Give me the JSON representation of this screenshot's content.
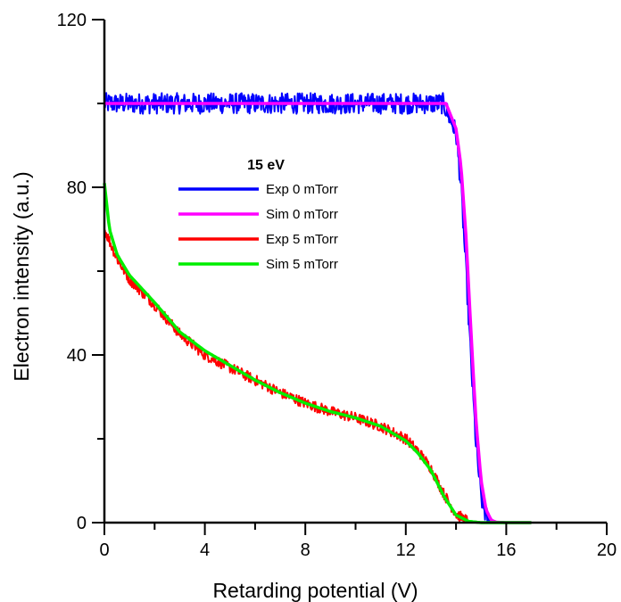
{
  "chart_data": {
    "type": "line",
    "title": "",
    "xlabel": "Retarding potential (V)",
    "ylabel": "Electron intensity (a.u.)",
    "xlim": [
      0,
      20
    ],
    "ylim": [
      0,
      120
    ],
    "x_ticks": [
      "0",
      "4",
      "8",
      "12",
      "16",
      "20"
    ],
    "y_ticks": [
      "0",
      "40",
      "80",
      "120"
    ],
    "legend": {
      "title": "15 eV",
      "placement": "center"
    },
    "series": [
      {
        "name": "Exp 0 mTorr",
        "color": "#0000ff",
        "noise": 2.5,
        "x": [
          0,
          2,
          4,
          6,
          8,
          10,
          12,
          13.5,
          14.0,
          14.2,
          14.4,
          14.6,
          14.8,
          15.0,
          15.2,
          15.4,
          16,
          17
        ],
        "y": [
          100,
          100,
          100,
          100,
          100,
          100,
          100,
          100,
          93,
          80,
          60,
          38,
          18,
          6,
          1.5,
          0.3,
          0,
          0
        ]
      },
      {
        "name": "Sim 0 mTorr",
        "color": "#ff00ff",
        "noise": 0,
        "x": [
          0,
          2,
          4,
          6,
          8,
          10,
          12,
          13.6,
          14.0,
          14.2,
          14.4,
          14.6,
          14.8,
          15.0,
          15.2,
          15.4,
          15.6,
          16,
          17
        ],
        "y": [
          100,
          100,
          100,
          100,
          100,
          100,
          100,
          100,
          94,
          85,
          68,
          45,
          24,
          10,
          3,
          0.6,
          0.1,
          0,
          0
        ]
      },
      {
        "name": "Exp 5 mTorr",
        "color": "#ff0000",
        "noise": 1.3,
        "x": [
          0,
          0.5,
          1,
          2,
          3,
          4,
          5,
          6,
          7,
          8,
          9,
          10,
          11,
          12,
          12.5,
          13,
          13.5,
          14,
          14.5,
          15,
          16,
          17
        ],
        "y": [
          70,
          63,
          58,
          52,
          45,
          40,
          37,
          34,
          31,
          28.5,
          26.5,
          25,
          23,
          20,
          17,
          13,
          7,
          2,
          0.3,
          0,
          0,
          0
        ]
      },
      {
        "name": "Sim 5 mTorr",
        "color": "#00ee00",
        "noise": 0,
        "x": [
          0,
          0.2,
          0.5,
          1,
          2,
          3,
          4,
          5,
          6,
          7,
          8,
          9,
          10,
          11,
          12,
          12.5,
          13,
          13.5,
          14,
          14.5,
          15,
          16,
          17
        ],
        "y": [
          81,
          70,
          64,
          59,
          52.5,
          45.5,
          41,
          37.5,
          34,
          31,
          28.5,
          26.5,
          25,
          23,
          19.5,
          16.5,
          12.5,
          6.5,
          1.8,
          0.3,
          0,
          0,
          0
        ]
      }
    ]
  }
}
